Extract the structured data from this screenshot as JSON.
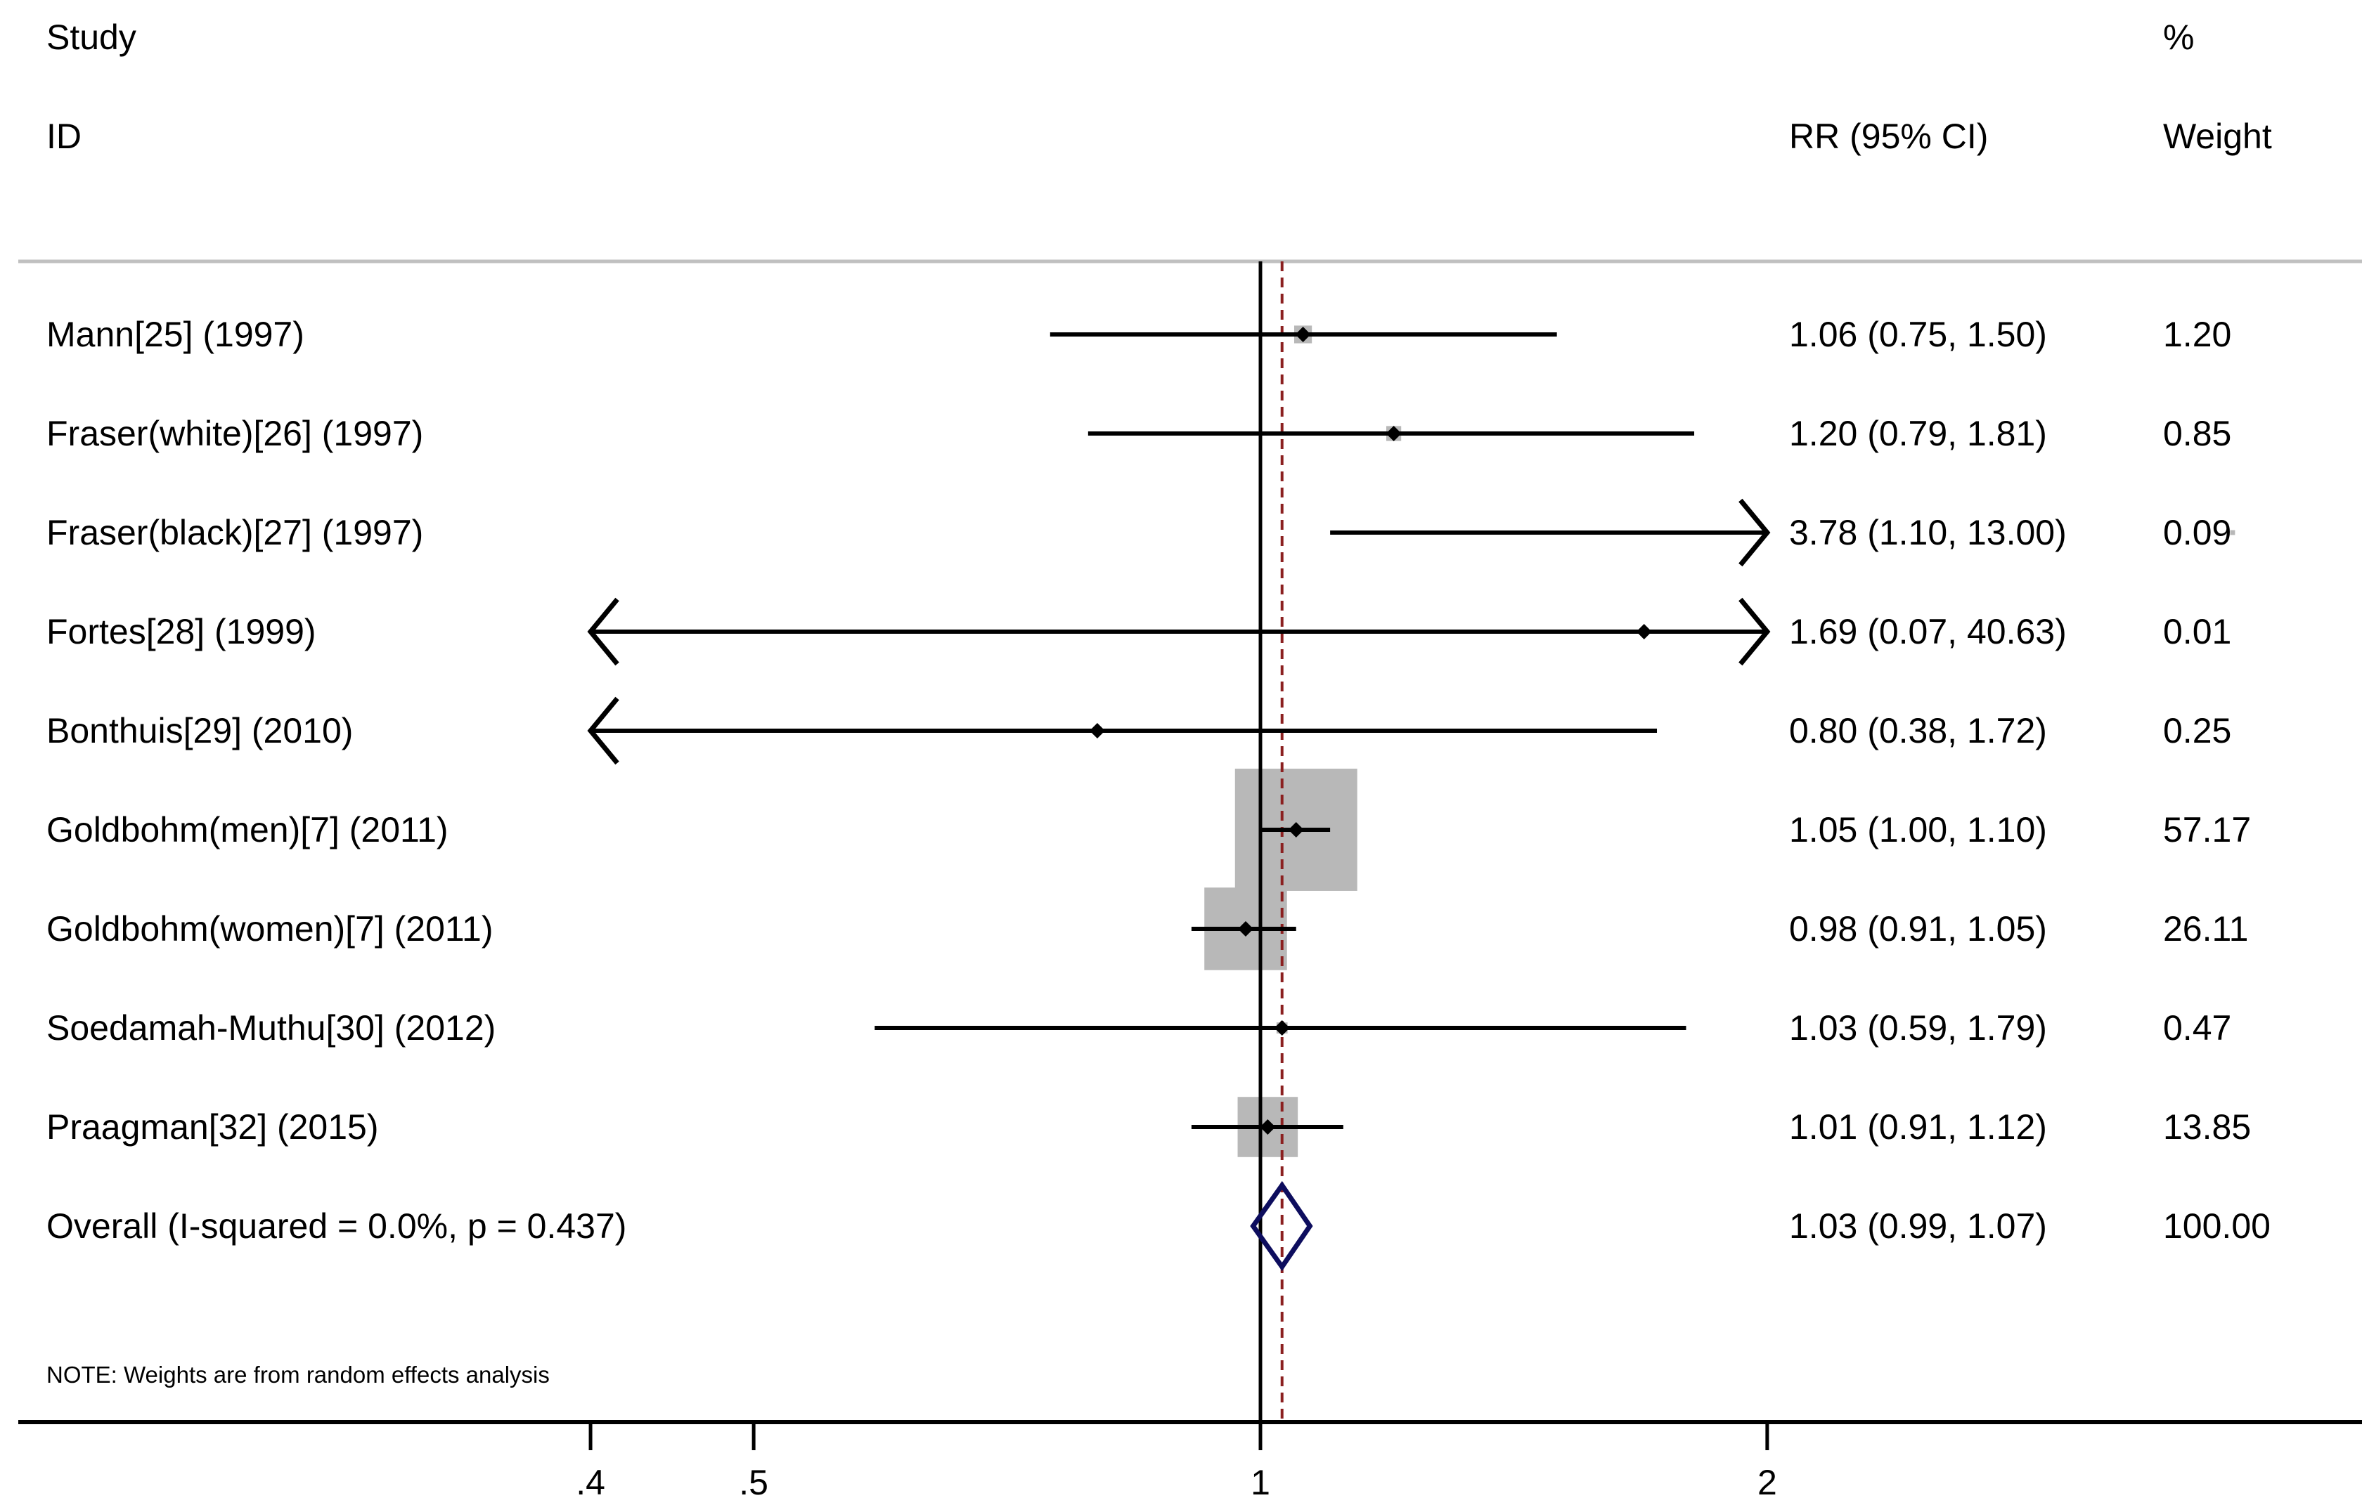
{
  "chart_data": {
    "type": "forest",
    "xscale": "log",
    "xlim": [
      0.29,
      3.5
    ],
    "xticks": [
      {
        "value": 0.4,
        "label": ".4"
      },
      {
        "value": 0.5,
        "label": ".5"
      },
      {
        "value": 1,
        "label": "1"
      },
      {
        "value": 2,
        "label": "2"
      }
    ],
    "clip": [
      0.4,
      2
    ],
    "null_value": 1,
    "overall_line_value": 1.03,
    "headers": {
      "study_line1": "Study",
      "study_line2": "ID",
      "effect": "RR (95% CI)",
      "weight_line1": "%",
      "weight_line2": "Weight"
    },
    "studies": [
      {
        "label": "Mann[25] (1997)",
        "rr": 1.06,
        "lower": 0.75,
        "upper": 1.5,
        "effect_text": "1.06 (0.75, 1.50)",
        "weight": 1.2,
        "weight_text": "1.20"
      },
      {
        "label": "Fraser(white)[26] (1997)",
        "rr": 1.2,
        "lower": 0.79,
        "upper": 1.81,
        "effect_text": "1.20 (0.79, 1.81)",
        "weight": 0.85,
        "weight_text": "0.85"
      },
      {
        "label": "Fraser(black)[27] (1997)",
        "rr": 3.78,
        "lower": 1.1,
        "upper": 13.0,
        "effect_text": "3.78 (1.10, 13.00)",
        "weight": 0.09,
        "weight_text": "0.09"
      },
      {
        "label": "Fortes[28] (1999)",
        "rr": 1.69,
        "lower": 0.07,
        "upper": 40.63,
        "effect_text": "1.69 (0.07, 40.63)",
        "weight": 0.01,
        "weight_text": "0.01"
      },
      {
        "label": "Bonthuis[29] (2010)",
        "rr": 0.8,
        "lower": 0.38,
        "upper": 1.72,
        "effect_text": "0.80 (0.38, 1.72)",
        "weight": 0.25,
        "weight_text": "0.25"
      },
      {
        "label": "Goldbohm(men)[7] (2011)",
        "rr": 1.05,
        "lower": 1.0,
        "upper": 1.1,
        "effect_text": "1.05 (1.00, 1.10)",
        "weight": 57.17,
        "weight_text": "57.17"
      },
      {
        "label": "Goldbohm(women)[7] (2011)",
        "rr": 0.98,
        "lower": 0.91,
        "upper": 1.05,
        "effect_text": "0.98 (0.91, 1.05)",
        "weight": 26.11,
        "weight_text": "26.11"
      },
      {
        "label": "Soedamah-Muthu[30] (2012)",
        "rr": 1.03,
        "lower": 0.59,
        "upper": 1.79,
        "effect_text": "1.03 (0.59, 1.79)",
        "weight": 0.47,
        "weight_text": "0.47"
      },
      {
        "label": "Praagman[32] (2015)",
        "rr": 1.01,
        "lower": 0.91,
        "upper": 1.12,
        "effect_text": "1.01 (0.91, 1.12)",
        "weight": 13.85,
        "weight_text": "13.85"
      }
    ],
    "overall": {
      "label": "Overall  (I-squared = 0.0%, p = 0.437)",
      "rr": 1.03,
      "lower": 0.99,
      "upper": 1.07,
      "effect_text": "1.03 (0.99, 1.07)",
      "weight": 100.0,
      "weight_text": "100.00"
    },
    "note": "NOTE: Weights are from random effects analysis",
    "colors": {
      "ci_line": "#000000",
      "weight_box": "#b8b8b8",
      "overall_diamond": "#0d0d5e",
      "overall_line": "#8b2020",
      "rule": "#c0c0c0",
      "axis": "#000000"
    }
  }
}
